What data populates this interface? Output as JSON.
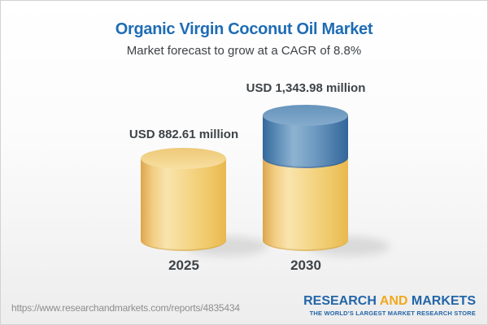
{
  "header": {
    "title": "Organic Virgin Coconut Oil Market",
    "subtitle": "Market forecast to grow at a CAGR of 8.8%"
  },
  "chart_data": {
    "type": "bar",
    "style": "3d-cylinder",
    "categories": [
      "2025",
      "2030"
    ],
    "values": [
      882.61,
      1343.98
    ],
    "unit": "USD million",
    "value_labels": [
      "USD 882.61 million",
      "USD 1,343.98 million"
    ],
    "cagr_percent": 8.8,
    "title": "Organic Virgin Coconut Oil Market",
    "subtitle": "Market forecast to grow at a CAGR of 8.8%",
    "xlabel": "",
    "ylabel": "",
    "legend": "none",
    "grid": false,
    "series_colors": {
      "base": "#F2CD82",
      "growth": "#5F8FB9"
    },
    "notes": "2030 cylinder is split: yellow base equals the 2025 value, blue top segment is the forecast growth increment"
  },
  "footer": {
    "url": "https://www.researchandmarkets.com/reports/4835434",
    "logo": {
      "word1": "RESEARCH",
      "word2": "AND",
      "word3": "MARKETS",
      "tagline": "THE WORLD'S LARGEST MARKET RESEARCH STORE"
    }
  },
  "colors": {
    "title_blue": "#1E6CB5",
    "text_dark": "#3E4347",
    "bar_yellow": "#F2CD82",
    "bar_blue": "#5F8FB9",
    "url_gray": "#8E8E8E",
    "logo_blue": "#2365A8",
    "logo_orange": "#F2A81F",
    "background_bottom": "#EDEDED"
  }
}
